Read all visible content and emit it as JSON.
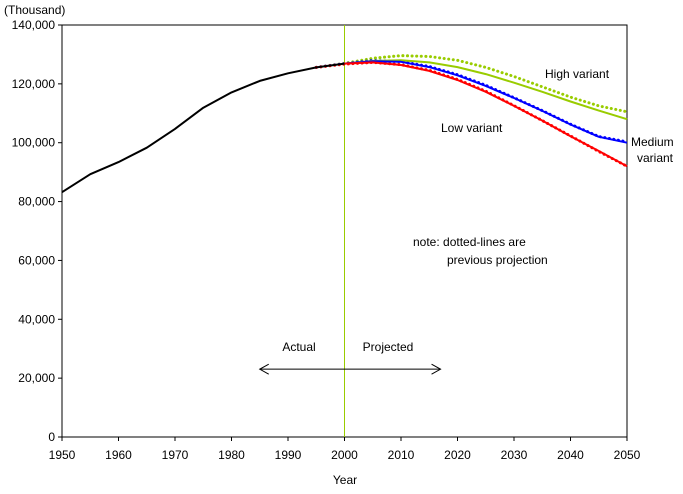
{
  "chart_data": {
    "type": "line",
    "ylabel": "(Thousand)",
    "xlabel": "Year",
    "xlim": [
      1950,
      2050
    ],
    "ylim": [
      0,
      140000
    ],
    "x_ticks": [
      "1950",
      "1960",
      "1970",
      "1980",
      "1990",
      "2000",
      "2010",
      "2020",
      "2030",
      "2040",
      "2050"
    ],
    "y_ticks": [
      "0",
      "20,000",
      "40,000",
      "60,000",
      "80,000",
      "100,000",
      "120,000",
      "140,000"
    ],
    "divider_year": 2000,
    "annotations": {
      "actual": "Actual",
      "projected": "Projected",
      "note_line1": "note: dotted-lines are",
      "note_line2": "previous projection"
    },
    "series": [
      {
        "name": "",
        "role": "actual",
        "color": "#000000",
        "style": "solid",
        "x": [
          1950,
          1955,
          1960,
          1965,
          1970,
          1975,
          1980,
          1985,
          1990,
          1995,
          2000
        ],
        "y": [
          83200,
          89300,
          93400,
          98300,
          104700,
          111900,
          117100,
          121000,
          123600,
          125600,
          126900
        ]
      },
      {
        "name": "High variant",
        "label_lines": [
          "High variant"
        ],
        "color": "#99cc00",
        "style": "solid",
        "x": [
          2000,
          2005,
          2010,
          2015,
          2020,
          2025,
          2030,
          2035,
          2040,
          2045,
          2050
        ],
        "y": [
          126900,
          127800,
          128000,
          127300,
          125700,
          123300,
          120400,
          117300,
          114000,
          110900,
          108000
        ]
      },
      {
        "name": "Medium variant",
        "label_lines": [
          "Medium",
          "variant"
        ],
        "color": "#0000ff",
        "style": "solid",
        "x": [
          2000,
          2005,
          2010,
          2015,
          2020,
          2025,
          2030,
          2035,
          2040,
          2045,
          2050
        ],
        "y": [
          126900,
          127700,
          127500,
          125700,
          122900,
          119300,
          115200,
          110800,
          106200,
          102000,
          100000
        ]
      },
      {
        "name": "Low variant",
        "label_lines": [
          "Low variant"
        ],
        "color": "#ff0000",
        "style": "solid",
        "x": [
          2000,
          2005,
          2010,
          2015,
          2020,
          2025,
          2030,
          2035,
          2040,
          2045,
          2050
        ],
        "y": [
          126900,
          127300,
          126400,
          124400,
          121300,
          117300,
          112500,
          107500,
          102200,
          97200,
          92000
        ]
      },
      {
        "name": "",
        "role": "previous-high",
        "color": "#99cc00",
        "style": "dotted",
        "x": [
          1995,
          2000,
          2005,
          2010,
          2015,
          2020,
          2025,
          2030,
          2035,
          2040,
          2045,
          2050
        ],
        "y": [
          125600,
          127000,
          128700,
          129600,
          129300,
          128000,
          125600,
          122500,
          119000,
          115500,
          112500,
          110500
        ]
      },
      {
        "name": "",
        "role": "previous-medium",
        "color": "#0000ff",
        "style": "dotted",
        "x": [
          1995,
          2000,
          2005,
          2010,
          2015,
          2020,
          2025,
          2030,
          2035,
          2040,
          2045,
          2050
        ],
        "y": [
          125600,
          126900,
          127900,
          127600,
          125900,
          123100,
          119500,
          115300,
          110900,
          106300,
          102100,
          100300
        ]
      },
      {
        "name": "",
        "role": "previous-low",
        "color": "#ff0000",
        "style": "dotted",
        "x": [
          1995,
          2000,
          2005,
          2010,
          2015,
          2020,
          2025,
          2030,
          2035,
          2040,
          2045,
          2050
        ],
        "y": [
          125600,
          126700,
          127300,
          126500,
          124600,
          121500,
          117500,
          112600,
          107500,
          102300,
          97000,
          92000
        ]
      }
    ]
  }
}
